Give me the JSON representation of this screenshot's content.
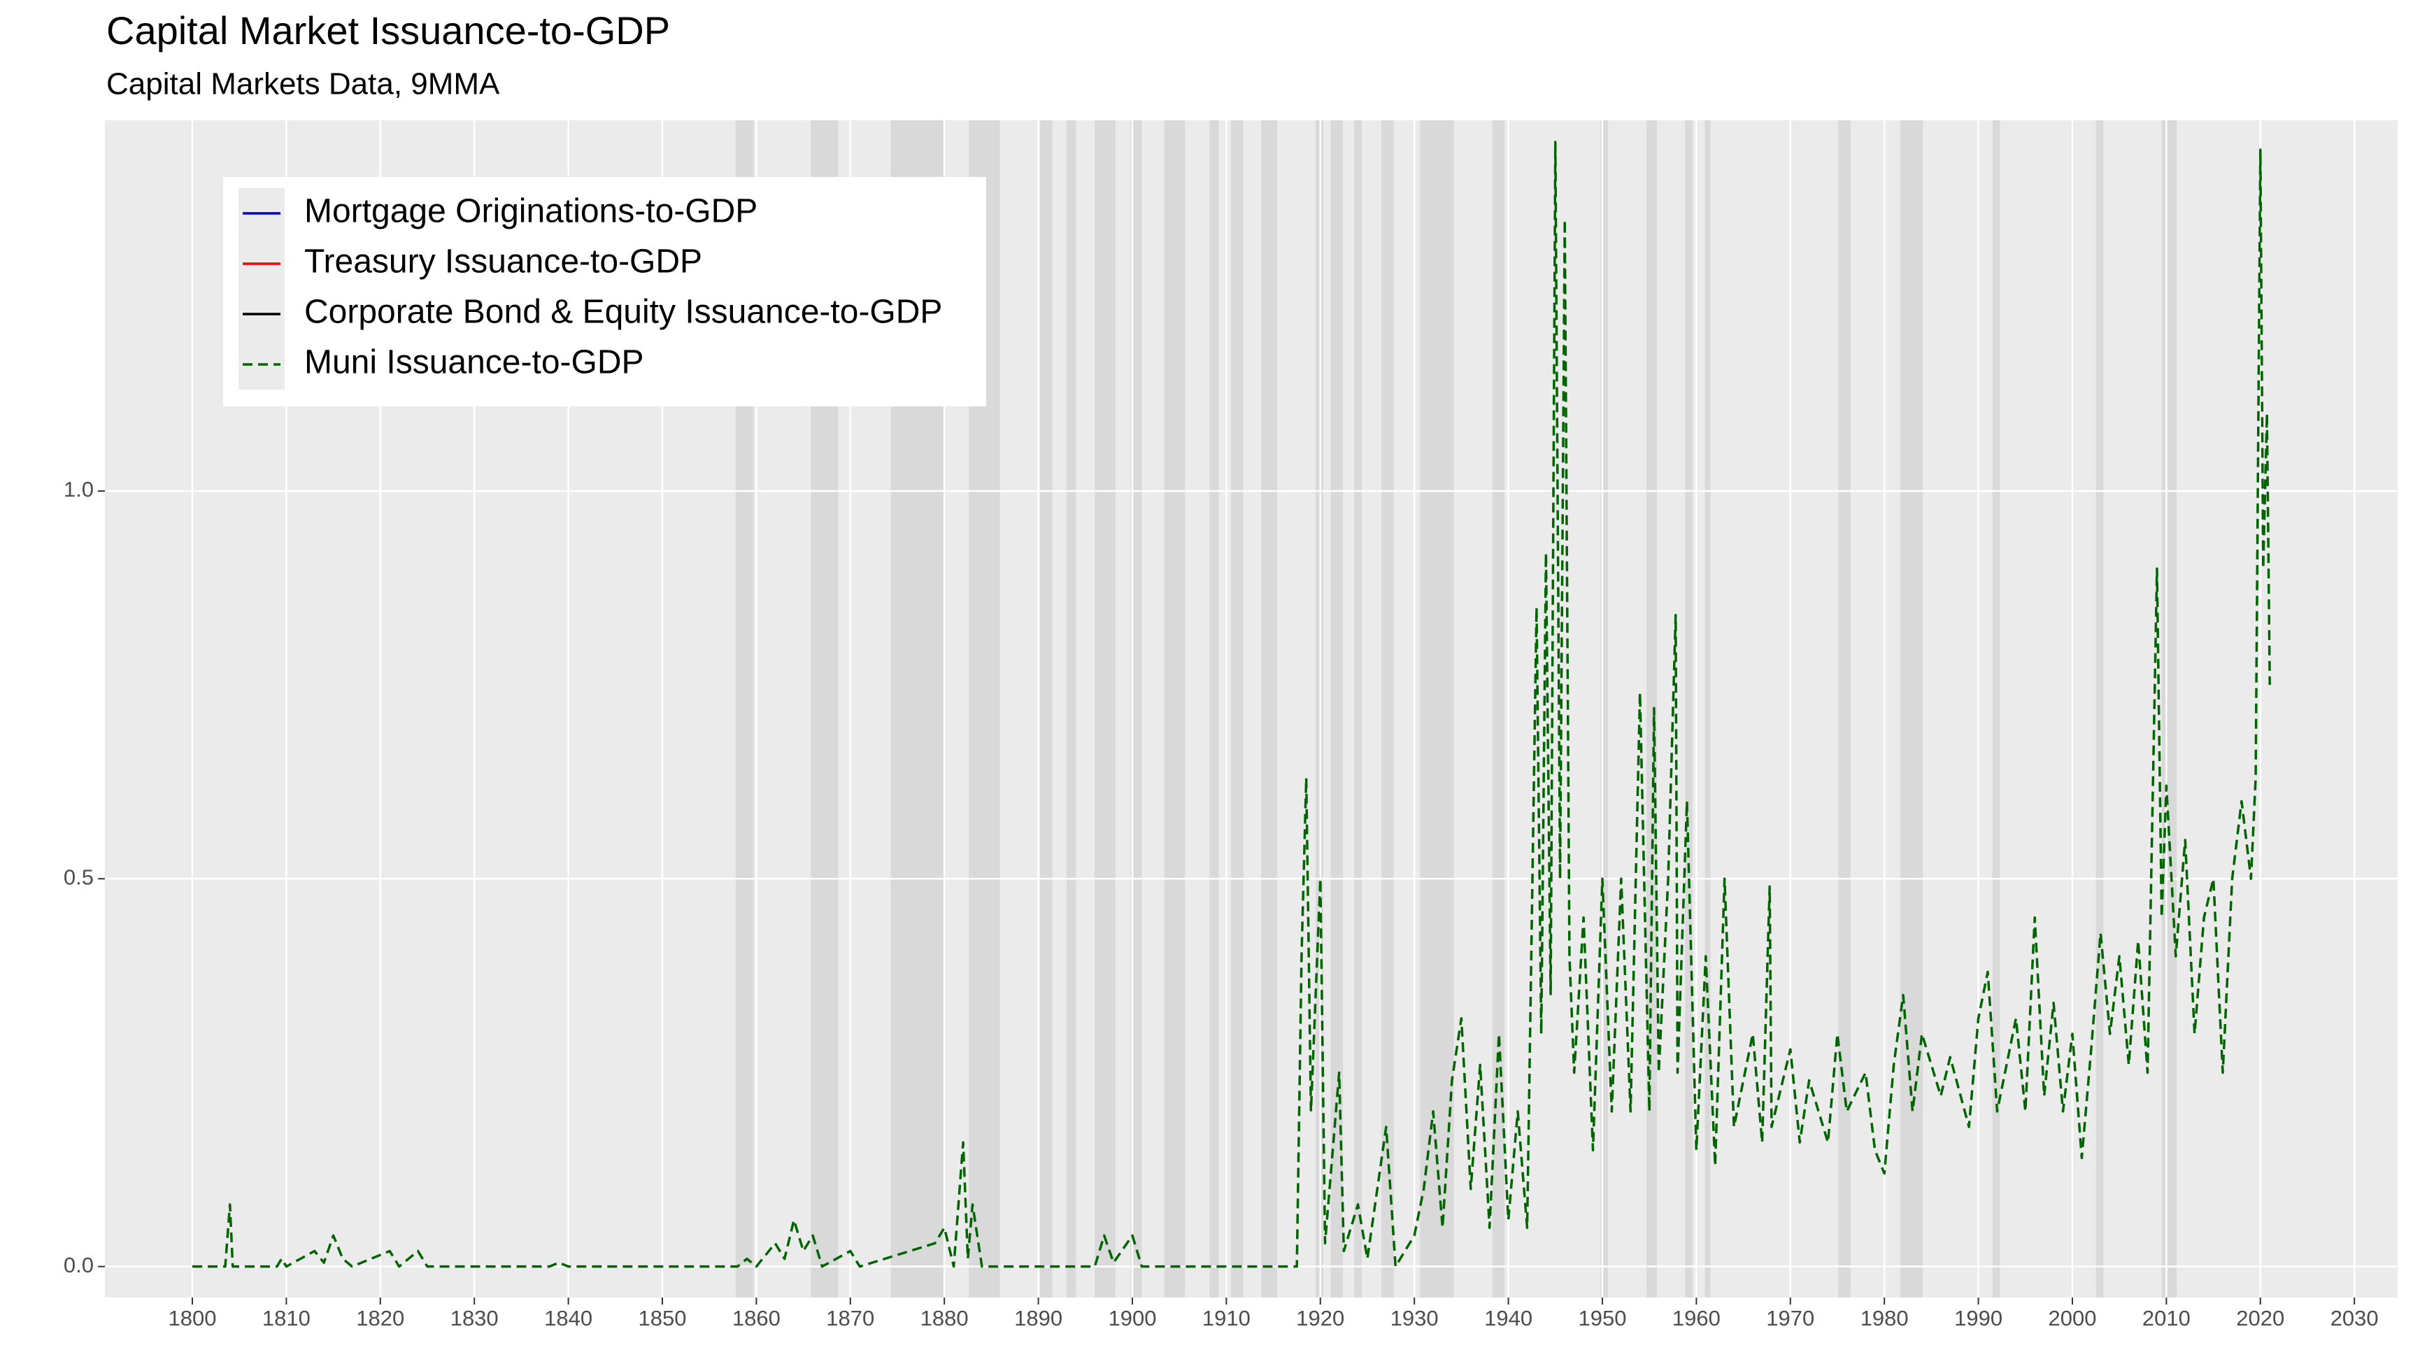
{
  "chart_data": {
    "type": "line",
    "title": "Capital Market Issuance-to-GDP",
    "subtitle": "Capital Markets Data, 9MMA",
    "xlim": [
      1790.7,
      2034.6
    ],
    "ylim": [
      -0.04,
      1.478
    ],
    "xticks": [
      1800,
      1810,
      1820,
      1830,
      1840,
      1850,
      1860,
      1870,
      1880,
      1890,
      1900,
      1910,
      1920,
      1930,
      1940,
      1950,
      1960,
      1970,
      1980,
      1990,
      2000,
      2010,
      2020,
      2030
    ],
    "yticks": [
      {
        "value": 0,
        "label": "0.0"
      },
      0.5,
      {
        "value": 1,
        "label": "1.0"
      }
    ],
    "grid": true,
    "legend_position": "top-left",
    "shaded_periods": [
      [
        1857.8,
        1859.7
      ],
      [
        1865.8,
        1868.7
      ],
      [
        1874.3,
        1880
      ],
      [
        1882.6,
        1885.9
      ],
      [
        1890.2,
        1891.5
      ],
      [
        1893,
        1894
      ],
      [
        1896,
        1898.2
      ],
      [
        1899.8,
        1901
      ],
      [
        1903.4,
        1905.6
      ],
      [
        1908.2,
        1909.2
      ],
      [
        1910.5,
        1911.8
      ],
      [
        1913.7,
        1915.4
      ],
      [
        1919.5,
        1920.3
      ],
      [
        1921.1,
        1922.4
      ],
      [
        1923.6,
        1924.4
      ],
      [
        1926.5,
        1927.8
      ],
      [
        1930.6,
        1934.2
      ],
      [
        1938.3,
        1939.6
      ],
      [
        1949.8,
        1950.6
      ],
      [
        1954.7,
        1955.8
      ],
      [
        1958.8,
        1959.6
      ],
      [
        1960.9,
        1961.5
      ],
      [
        1975.1,
        1976.4
      ],
      [
        1981.7,
        1984.1
      ],
      [
        1991.5,
        1992.3
      ],
      [
        2002.5,
        2003.3
      ],
      [
        2009.5,
        2011.1
      ]
    ],
    "x": [
      1800,
      1803.5,
      1804,
      1804.3,
      1809,
      1809.5,
      1810,
      1813,
      1814,
      1815,
      1816,
      1817,
      1821,
      1822,
      1824,
      1825,
      1838,
      1839,
      1840,
      1858,
      1859,
      1860,
      1862,
      1863,
      1864,
      1865,
      1866,
      1867,
      1870,
      1871,
      1879,
      1880,
      1881,
      1882,
      1882.5,
      1883,
      1884,
      1896,
      1897,
      1898,
      1900,
      1901,
      1917.5,
      1918,
      1918.5,
      1919,
      1920,
      1920.5,
      1922,
      1922.5,
      1924,
      1925,
      1927,
      1928,
      1930,
      1931,
      1932,
      1933,
      1934,
      1935,
      1936,
      1937,
      1938,
      1939,
      1940,
      1941,
      1942,
      1943,
      1943.5,
      1944,
      1944.5,
      1945,
      1945.5,
      1946,
      1946.5,
      1947,
      1948,
      1949,
      1950,
      1951,
      1952,
      1953,
      1954,
      1955,
      1955.5,
      1956,
      1957,
      1957.8,
      1958,
      1959,
      1960,
      1961,
      1962,
      1963,
      1964,
      1966,
      1967,
      1967.8,
      1968,
      1970,
      1971,
      1972,
      1974,
      1975,
      1976,
      1978,
      1979,
      1980,
      1981,
      1982,
      1983,
      1984,
      1986,
      1987,
      1989,
      1990,
      1991,
      1992,
      1994,
      1995,
      1996,
      1997,
      1998,
      1999,
      2000,
      2001,
      2002,
      2003,
      2004,
      2005,
      2006,
      2007,
      2008,
      2009,
      2009.5,
      2010,
      2011,
      2012,
      2013,
      2014,
      2015,
      2016,
      2017,
      2018,
      2019,
      2019.5,
      2020,
      2020.3,
      2020.7,
      2021
    ],
    "series": [
      {
        "name": "Mortgage Originations-to-GDP",
        "color": "#0000cc",
        "linestyle": "solid",
        "values": [
          null,
          null,
          null,
          null,
          null,
          null,
          null,
          null,
          null,
          null,
          null,
          null,
          null,
          null,
          null,
          null,
          null,
          null,
          null,
          null,
          null,
          null,
          null,
          null,
          null,
          null,
          null,
          null,
          null,
          null,
          null,
          null,
          null,
          null,
          null,
          null,
          null,
          null,
          null,
          null,
          null,
          null,
          null,
          null,
          null,
          null,
          null,
          null,
          null,
          null,
          null,
          null,
          null,
          null,
          null,
          null,
          null,
          null,
          null,
          null,
          null,
          null,
          null,
          null,
          null,
          null,
          null,
          null,
          null,
          null,
          null,
          null,
          null,
          null,
          null,
          null,
          null,
          null,
          null,
          null,
          null,
          null,
          null,
          null,
          null,
          null,
          null,
          null,
          null,
          null,
          null,
          null,
          null,
          null,
          null,
          null,
          null,
          null,
          null,
          null,
          null,
          null,
          null,
          null,
          null,
          null,
          null,
          null,
          null,
          null,
          null,
          null,
          null,
          null,
          null,
          null,
          null,
          null,
          null,
          null,
          null,
          null,
          null,
          null,
          null,
          null,
          null,
          null,
          null,
          null,
          null,
          null,
          null,
          null,
          null,
          null,
          null,
          null,
          null,
          null,
          null,
          null,
          null,
          null,
          null,
          null,
          null,
          null,
          null,
          null
        ]
      },
      {
        "name": "Treasury Issuance-to-GDP",
        "color": "#ff0000",
        "linestyle": "solid",
        "values": [
          null,
          null,
          null,
          null,
          null,
          null,
          null,
          null,
          null,
          null,
          null,
          null,
          null,
          null,
          null,
          null,
          null,
          null,
          null,
          null,
          null,
          null,
          null,
          null,
          null,
          null,
          null,
          null,
          null,
          null,
          null,
          null,
          null,
          null,
          null,
          null,
          null,
          null,
          null,
          null,
          null,
          null,
          null,
          null,
          null,
          null,
          null,
          null,
          null,
          null,
          null,
          null,
          null,
          null,
          null,
          null,
          null,
          null,
          null,
          null,
          null,
          null,
          null,
          null,
          null,
          null,
          null,
          null,
          null,
          null,
          null,
          null,
          null,
          null,
          null,
          null,
          null,
          null,
          null,
          null,
          null,
          null,
          null,
          null,
          null,
          null,
          null,
          null,
          null,
          null,
          null,
          null,
          null,
          null,
          null,
          null,
          null,
          null,
          null,
          null,
          null,
          null,
          null,
          null,
          null,
          null,
          null,
          null,
          null,
          null,
          null,
          null,
          null,
          null,
          null,
          null,
          null,
          null,
          null,
          null,
          null,
          null,
          null,
          null,
          null,
          null,
          null,
          null,
          null,
          null,
          null,
          null,
          null,
          null,
          null,
          null,
          null,
          null,
          null,
          null,
          null,
          null,
          null,
          null,
          null,
          null,
          null,
          null,
          null,
          null
        ]
      },
      {
        "name": "Corporate Bond & Equity Issuance-to-GDP",
        "color": "#000000",
        "linestyle": "solid",
        "values": [
          null,
          null,
          null,
          null,
          null,
          null,
          null,
          null,
          null,
          null,
          null,
          null,
          null,
          null,
          null,
          null,
          null,
          null,
          null,
          null,
          null,
          null,
          null,
          null,
          null,
          null,
          null,
          null,
          null,
          null,
          null,
          null,
          null,
          null,
          null,
          null,
          null,
          null,
          null,
          null,
          null,
          null,
          null,
          null,
          null,
          null,
          null,
          null,
          null,
          null,
          null,
          null,
          null,
          null,
          null,
          null,
          null,
          null,
          null,
          null,
          null,
          null,
          null,
          null,
          null,
          null,
          null,
          null,
          null,
          null,
          null,
          null,
          null,
          null,
          null,
          null,
          null,
          null,
          null,
          null,
          null,
          null,
          null,
          null,
          null,
          null,
          null,
          null,
          null,
          null,
          null,
          null,
          null,
          null,
          null,
          null,
          null,
          null,
          null,
          null,
          null,
          null,
          null,
          null,
          null,
          null,
          null,
          null,
          null,
          null,
          null,
          null,
          null,
          null,
          null,
          null,
          null,
          null,
          null,
          null,
          null,
          null,
          null,
          null,
          null,
          null,
          null,
          null,
          null,
          null,
          null,
          null,
          null,
          null,
          null,
          null,
          null,
          null,
          null,
          null,
          null,
          null,
          null,
          null,
          null,
          null,
          null,
          null,
          null,
          null
        ]
      },
      {
        "name": "Muni Issuance-to-GDP",
        "color": "#006400",
        "linestyle": "dashed",
        "values": [
          0,
          0,
          0.08,
          0,
          0,
          0.01,
          0,
          0.02,
          0.005,
          0.04,
          0.01,
          0,
          0.02,
          0,
          0.02,
          0,
          0,
          0.005,
          0,
          0,
          0.01,
          0,
          0.03,
          0.01,
          0.06,
          0.02,
          0.04,
          0,
          0.02,
          0,
          0.03,
          0.05,
          0,
          0.16,
          0.01,
          0.08,
          0,
          0,
          0.04,
          0.005,
          0.04,
          0,
          0,
          0.4,
          0.63,
          0.2,
          0.5,
          0.03,
          0.25,
          0.02,
          0.08,
          0.01,
          0.18,
          0,
          0.04,
          0.1,
          0.2,
          0.05,
          0.24,
          0.32,
          0.1,
          0.26,
          0.05,
          0.3,
          0.06,
          0.2,
          0.05,
          0.85,
          0.3,
          0.92,
          0.35,
          1.45,
          0.5,
          1.35,
          0.4,
          0.25,
          0.45,
          0.15,
          0.5,
          0.2,
          0.5,
          0.2,
          0.74,
          0.2,
          0.72,
          0.25,
          0.5,
          0.84,
          0.25,
          0.6,
          0.15,
          0.4,
          0.13,
          0.5,
          0.18,
          0.3,
          0.16,
          0.49,
          0.18,
          0.28,
          0.16,
          0.24,
          0.16,
          0.3,
          0.2,
          0.25,
          0.15,
          0.12,
          0.26,
          0.35,
          0.2,
          0.3,
          0.22,
          0.27,
          0.18,
          0.32,
          0.38,
          0.2,
          0.32,
          0.2,
          0.45,
          0.22,
          0.34,
          0.2,
          0.3,
          0.14,
          0.28,
          0.43,
          0.3,
          0.4,
          0.26,
          0.42,
          0.25,
          0.9,
          0.45,
          0.62,
          0.4,
          0.55,
          0.3,
          0.45,
          0.5,
          0.25,
          0.5,
          0.6,
          0.5,
          0.63,
          1.44,
          0.9,
          1.1,
          0.75
        ]
      }
    ]
  }
}
